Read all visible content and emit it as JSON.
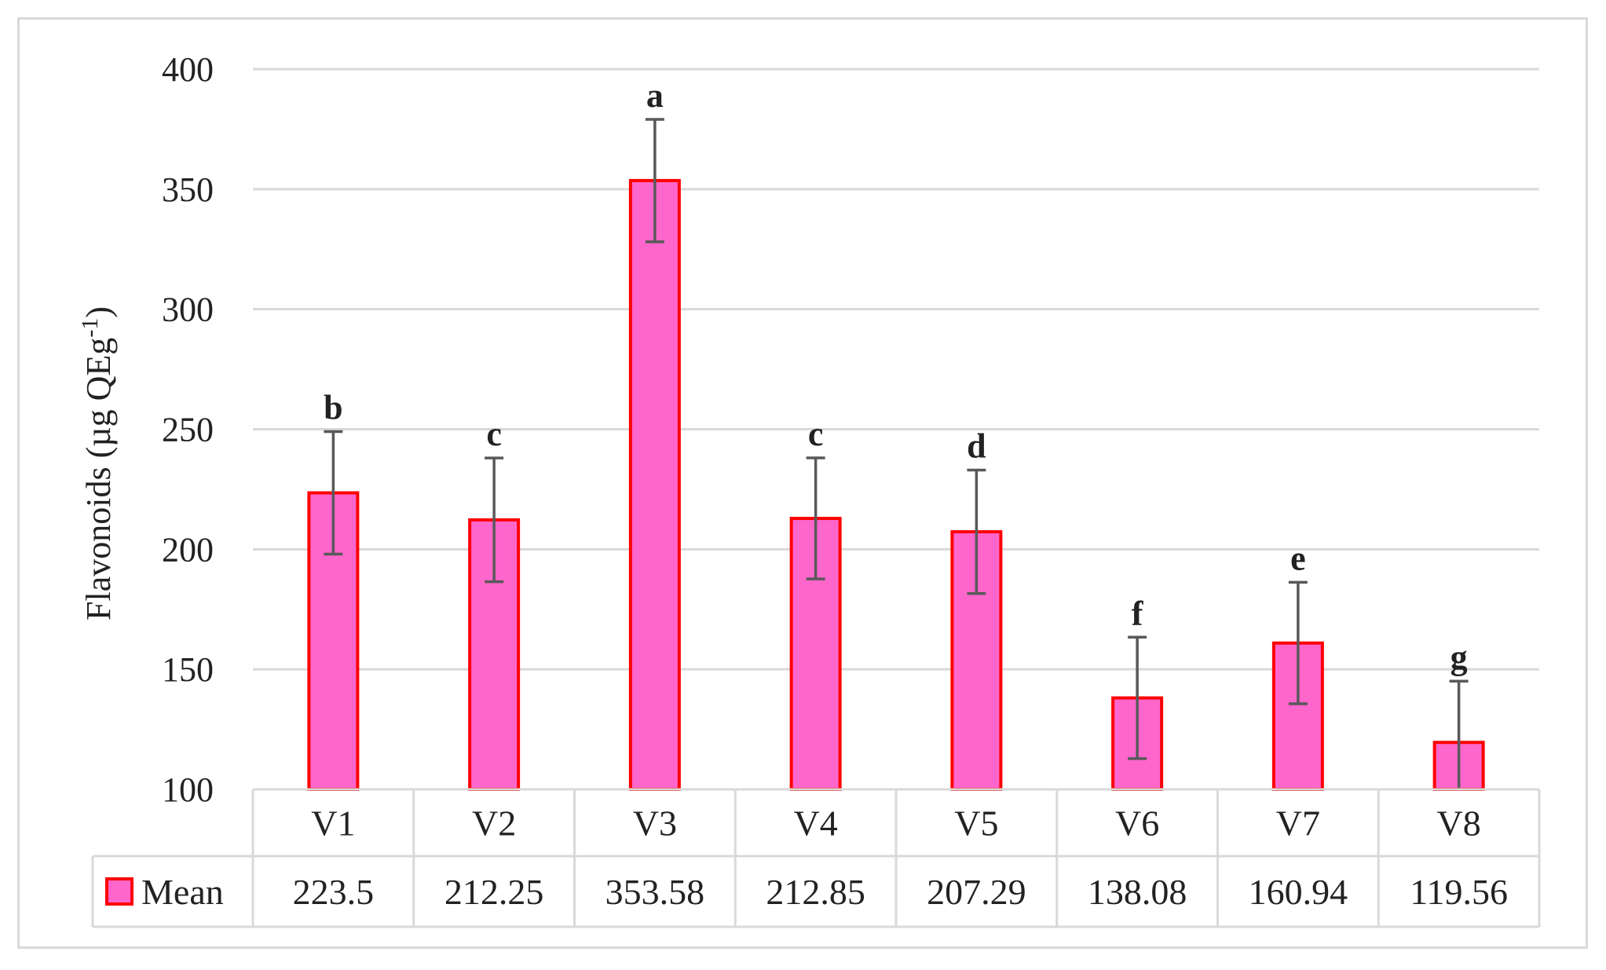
{
  "chart_data": {
    "type": "bar",
    "ylabel": "Flavonoids (µg QEg",
    "ylabel_sup": "-1",
    "ylabel_end": ")",
    "ylim": [
      100,
      400
    ],
    "yticks": [
      100,
      150,
      200,
      250,
      300,
      350,
      400
    ],
    "categories": [
      "V1",
      "V2",
      "V3",
      "V4",
      "V5",
      "V6",
      "V7",
      "V8"
    ],
    "series": [
      {
        "name": "Mean",
        "values": [
          223.5,
          212.25,
          353.58,
          212.85,
          207.29,
          138.08,
          160.94,
          119.56
        ],
        "error": [
          25.5,
          25.75,
          25.5,
          25.2,
          25.7,
          25.3,
          25.3,
          25.5
        ],
        "significance": [
          "b",
          "c",
          "a",
          "c",
          "d",
          "f",
          "e",
          "g"
        ],
        "fill_color": "#ff66cc",
        "edge_color": "#ff0000",
        "error_color": "#595959"
      }
    ],
    "value_labels": [
      "223.5",
      "212.25",
      "353.58",
      "212.85",
      "207.29",
      "138.08",
      "160.94",
      "119.56"
    ],
    "grid": true,
    "legend": "data-table",
    "grid_color": "#d9d9d9"
  }
}
